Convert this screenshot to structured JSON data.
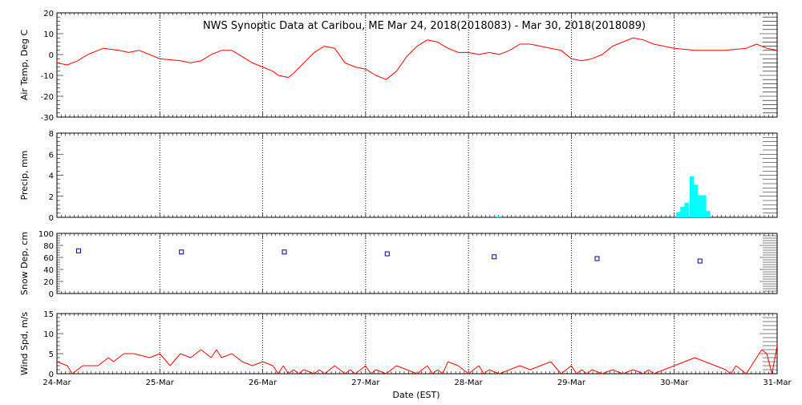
{
  "title": "NWS Synoptic Data at Caribou, ME   Mar 24, 2018(2018083) - Mar 30, 2018(2018089)",
  "x_label": "Date (EST)",
  "x_ticks": [
    "24-Mar",
    "25-Mar",
    "26-Mar",
    "27-Mar",
    "28-Mar",
    "29-Mar",
    "30-Mar",
    "31-Mar"
  ],
  "colors": {
    "line": "#ff0000",
    "precip": "#00ffff",
    "marker": "#00008b",
    "axis": "#000000"
  },
  "chart_data": [
    {
      "type": "line",
      "ylabel": "Air Temp, Deg C",
      "ylim": [
        -30,
        20
      ],
      "y_ticks": [
        20,
        10,
        0,
        -10,
        -20,
        -30
      ],
      "x_units": "days since 24-Mar 00:00 EST",
      "x": [
        0,
        0.1,
        0.2,
        0.3,
        0.45,
        0.6,
        0.7,
        0.8,
        0.9,
        1.0,
        1.2,
        1.3,
        1.4,
        1.5,
        1.6,
        1.7,
        1.8,
        1.9,
        2.0,
        2.1,
        2.15,
        2.25,
        2.3,
        2.4,
        2.5,
        2.6,
        2.7,
        2.8,
        2.9,
        3.0,
        3.1,
        3.2,
        3.3,
        3.4,
        3.5,
        3.6,
        3.7,
        3.8,
        3.9,
        4.0,
        4.1,
        4.2,
        4.3,
        4.4,
        4.5,
        4.6,
        4.7,
        4.8,
        4.9,
        5.0,
        5.1,
        5.2,
        5.3,
        5.4,
        5.5,
        5.6,
        5.7,
        5.8,
        5.9,
        6.0,
        6.2,
        6.5,
        6.7,
        6.8,
        6.9,
        7.0
      ],
      "series": [
        {
          "values": [
            -4,
            -5,
            -3,
            0,
            3,
            2,
            1,
            2,
            0,
            -2,
            -3,
            -4,
            -3,
            0,
            2,
            2,
            -1,
            -4,
            -6,
            -8,
            -10,
            -11,
            -9,
            -4,
            1,
            4,
            3,
            -4,
            -6,
            -7,
            -10,
            -12,
            -8,
            -1,
            4,
            7,
            6,
            3,
            1,
            1,
            0,
            1,
            0,
            2,
            5,
            5,
            4,
            3,
            2,
            -2,
            -3,
            -2,
            0,
            4,
            6,
            8,
            7,
            5,
            4,
            3,
            2,
            2,
            3,
            5,
            3,
            2
          ]
        }
      ]
    },
    {
      "type": "bar",
      "ylabel": "Precip, mm",
      "ylim": [
        0,
        8
      ],
      "y_ticks": [
        8,
        6,
        4,
        2,
        0
      ],
      "x_units": "days since 24-Mar 00:00 EST",
      "x": [
        4.29,
        6.04,
        6.08,
        6.12,
        6.17,
        6.21,
        6.25,
        6.29,
        6.33
      ],
      "series": [
        {
          "values": [
            0.1,
            0.5,
            1.0,
            1.4,
            3.9,
            3.1,
            2.1,
            2.1,
            0.6
          ]
        }
      ]
    },
    {
      "type": "scatter",
      "ylabel": "Snow Dep, cm",
      "ylim": [
        0,
        100
      ],
      "y_ticks": [
        100,
        80,
        60,
        40,
        20,
        0
      ],
      "x_units": "days since 24-Mar 00:00 EST",
      "x": [
        0.21,
        1.21,
        2.21,
        3.21,
        4.25,
        5.25,
        6.25
      ],
      "series": [
        {
          "values": [
            71,
            69,
            69,
            66,
            61,
            58,
            54
          ]
        }
      ]
    },
    {
      "type": "line",
      "ylabel": "Wind Spd, m/s",
      "ylim": [
        0,
        15
      ],
      "y_ticks": [
        15,
        10,
        5,
        0
      ],
      "x_units": "days since 24-Mar 00:00 EST",
      "x": [
        0,
        0.1,
        0.15,
        0.25,
        0.4,
        0.5,
        0.55,
        0.65,
        0.75,
        0.9,
        1.0,
        1.1,
        1.2,
        1.3,
        1.4,
        1.5,
        1.55,
        1.6,
        1.7,
        1.8,
        1.9,
        2.0,
        2.1,
        2.15,
        2.2,
        2.25,
        2.3,
        2.35,
        2.4,
        2.5,
        2.55,
        2.6,
        2.7,
        2.8,
        2.85,
        2.9,
        3.0,
        3.05,
        3.1,
        3.2,
        3.3,
        3.4,
        3.5,
        3.6,
        3.65,
        3.7,
        3.75,
        3.8,
        3.9,
        4.0,
        4.1,
        4.15,
        4.2,
        4.3,
        4.4,
        4.5,
        4.6,
        4.7,
        4.8,
        4.9,
        5.0,
        5.05,
        5.1,
        5.15,
        5.2,
        5.3,
        5.4,
        5.5,
        5.6,
        5.7,
        5.75,
        5.8,
        5.9,
        6.0,
        6.1,
        6.2,
        6.3,
        6.4,
        6.5,
        6.55,
        6.6,
        6.7,
        6.8,
        6.85,
        6.9,
        6.95,
        7.0
      ],
      "series": [
        {
          "values": [
            3,
            2,
            0,
            2,
            2,
            4,
            3,
            5,
            5,
            4,
            5,
            2,
            5,
            4,
            6,
            4,
            6,
            4,
            5,
            3,
            2,
            3,
            2,
            0,
            2,
            0,
            1,
            0,
            1,
            0,
            1,
            0,
            2,
            0,
            1,
            0,
            2,
            0,
            1,
            0,
            2,
            1,
            0,
            2,
            0,
            1,
            0,
            3,
            2,
            0,
            2,
            0,
            1,
            0,
            1,
            2,
            1,
            2,
            3,
            0,
            2,
            0,
            1,
            0,
            1,
            0,
            1,
            0,
            1,
            0,
            1,
            0,
            1,
            2,
            3,
            4,
            3,
            2,
            1,
            0,
            2,
            0,
            4,
            6,
            5,
            0,
            7
          ]
        }
      ]
    }
  ]
}
